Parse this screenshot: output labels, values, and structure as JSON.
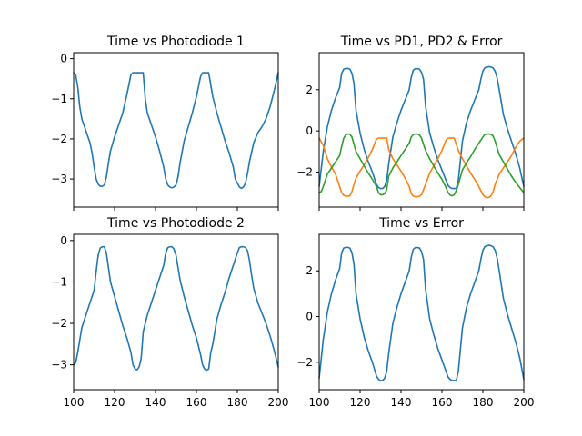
{
  "chart_data": [
    {
      "type": "line",
      "title": "Time vs Photodiode 1",
      "xlim": [
        100,
        200
      ],
      "ylim": [
        -3.7,
        0.15
      ],
      "xticks": [
        100,
        120,
        140,
        160,
        180,
        200
      ],
      "yticks": [
        0,
        -1,
        -2,
        -3
      ],
      "yticklabels": [
        "0",
        "−1",
        "−2",
        "−3"
      ],
      "show_xticklabels": false,
      "series": [
        {
          "color": "#1f77b4",
          "x": [
            100,
            101,
            102,
            103,
            104,
            106,
            108,
            109,
            110,
            111,
            112,
            113,
            114,
            115,
            116,
            117,
            118,
            120,
            122,
            124,
            126,
            128,
            129,
            130,
            132,
            134,
            135,
            136,
            138,
            140,
            142,
            144,
            145,
            146,
            147,
            148,
            149,
            150,
            151,
            152,
            154,
            156,
            158,
            160,
            162,
            163,
            164,
            166,
            167,
            168,
            170,
            172,
            174,
            176,
            178,
            179,
            180,
            181,
            182,
            183,
            184,
            185,
            186,
            188,
            190,
            192,
            194,
            196,
            198,
            200
          ],
          "y": [
            -0.35,
            -0.4,
            -0.7,
            -1.2,
            -1.5,
            -1.8,
            -2.1,
            -2.35,
            -2.7,
            -3.0,
            -3.13,
            -3.18,
            -3.18,
            -3.15,
            -2.95,
            -2.6,
            -2.3,
            -1.95,
            -1.65,
            -1.35,
            -0.9,
            -0.4,
            -0.35,
            -0.35,
            -0.35,
            -0.35,
            -1.0,
            -1.35,
            -1.65,
            -1.95,
            -2.3,
            -2.7,
            -3.0,
            -3.15,
            -3.2,
            -3.22,
            -3.2,
            -3.15,
            -2.95,
            -2.6,
            -2.05,
            -1.7,
            -1.35,
            -0.95,
            -0.45,
            -0.35,
            -0.35,
            -0.35,
            -0.65,
            -0.95,
            -1.35,
            -1.7,
            -2.05,
            -2.35,
            -2.7,
            -3.0,
            -3.1,
            -3.2,
            -3.23,
            -3.2,
            -3.1,
            -2.85,
            -2.55,
            -2.1,
            -1.85,
            -1.7,
            -1.5,
            -1.2,
            -0.8,
            -0.35
          ]
        }
      ]
    },
    {
      "type": "line",
      "title": "Time vs PD1, PD2 & Error",
      "xlim": [
        100,
        200
      ],
      "ylim": [
        -3.7,
        3.8
      ],
      "xticks": [
        100,
        120,
        140,
        160,
        180,
        200
      ],
      "yticks": [
        2,
        0,
        -2
      ],
      "yticklabels": [
        "2",
        "0",
        "−2"
      ],
      "show_xticklabels": false,
      "series": [
        {
          "color": "#1f77b4",
          "x": [
            100,
            102,
            104,
            106,
            108,
            110,
            111,
            112,
            113,
            114,
            115,
            116,
            117,
            118,
            120,
            122,
            124,
            126,
            128,
            129,
            130,
            131,
            132,
            133,
            134,
            136,
            138,
            140,
            142,
            144,
            145,
            146,
            147,
            148,
            149,
            150,
            151,
            152,
            154,
            156,
            158,
            160,
            162,
            163,
            164,
            165,
            166,
            167,
            168,
            170,
            172,
            174,
            176,
            178,
            179,
            180,
            181,
            182,
            183,
            184,
            185,
            186,
            187,
            188,
            190,
            192,
            194,
            196,
            198,
            200
          ],
          "y": [
            -2.7,
            -1.0,
            0.2,
            1.0,
            1.6,
            2.1,
            2.8,
            3.0,
            3.03,
            3.03,
            3.0,
            2.8,
            2.3,
            1.0,
            -0.1,
            -0.9,
            -1.5,
            -2.0,
            -2.6,
            -2.75,
            -2.8,
            -2.8,
            -2.7,
            -2.4,
            -1.6,
            -0.3,
            0.4,
            1.0,
            1.5,
            2.0,
            2.6,
            2.95,
            3.02,
            3.02,
            3.0,
            2.85,
            2.5,
            1.2,
            -0.1,
            -0.8,
            -1.4,
            -1.9,
            -2.4,
            -2.65,
            -2.75,
            -2.8,
            -2.8,
            -2.8,
            -2.4,
            -0.5,
            0.4,
            1.0,
            1.5,
            2.0,
            2.5,
            2.9,
            3.07,
            3.1,
            3.12,
            3.1,
            3.05,
            2.9,
            2.55,
            2.0,
            0.8,
            0.1,
            -0.5,
            -1.1,
            -1.8,
            -2.7
          ]
        },
        {
          "color": "#ff7f0e",
          "x": [
            100,
            102,
            104,
            106,
            108,
            109,
            110,
            111,
            112,
            113,
            114,
            115,
            116,
            117,
            118,
            120,
            122,
            124,
            126,
            128,
            129,
            130,
            131,
            132,
            133,
            134,
            136,
            138,
            140,
            142,
            144,
            145,
            146,
            147,
            148,
            149,
            150,
            152,
            154,
            156,
            158,
            160,
            162,
            163,
            164,
            165,
            166,
            168,
            170,
            172,
            174,
            176,
            178,
            180,
            181,
            182,
            183,
            184,
            185,
            186,
            188,
            190,
            192,
            194,
            196,
            198,
            200
          ],
          "y": [
            -0.35,
            -0.7,
            -1.35,
            -1.75,
            -2.1,
            -2.4,
            -2.7,
            -3.0,
            -3.13,
            -3.17,
            -3.17,
            -3.15,
            -2.95,
            -2.6,
            -2.3,
            -1.95,
            -1.65,
            -1.3,
            -0.9,
            -0.4,
            -0.35,
            -0.35,
            -0.35,
            -0.35,
            -0.35,
            -0.9,
            -1.35,
            -1.65,
            -1.95,
            -2.3,
            -2.7,
            -3.05,
            -3.17,
            -3.2,
            -3.2,
            -3.17,
            -3.1,
            -2.6,
            -2.05,
            -1.7,
            -1.35,
            -0.95,
            -0.45,
            -0.35,
            -0.35,
            -0.35,
            -0.35,
            -0.95,
            -1.35,
            -1.7,
            -2.05,
            -2.35,
            -2.7,
            -3.1,
            -3.2,
            -3.25,
            -3.23,
            -3.15,
            -2.95,
            -2.6,
            -2.1,
            -1.8,
            -1.5,
            -1.2,
            -0.8,
            -0.5,
            -0.35
          ]
        },
        {
          "color": "#2ca02c",
          "x": [
            100,
            101,
            102,
            104,
            106,
            108,
            110,
            111,
            112,
            113,
            114,
            115,
            116,
            117,
            118,
            120,
            122,
            124,
            126,
            128,
            129,
            130,
            131,
            132,
            133,
            134,
            136,
            138,
            140,
            142,
            144,
            145,
            146,
            147,
            148,
            149,
            150,
            152,
            154,
            156,
            158,
            160,
            162,
            163,
            164,
            165,
            166,
            167,
            168,
            170,
            172,
            174,
            176,
            178,
            180,
            181,
            182,
            183,
            184,
            185,
            186,
            187,
            188,
            190,
            192,
            194,
            196,
            198,
            200
          ],
          "y": [
            -3.0,
            -2.95,
            -2.7,
            -2.1,
            -1.8,
            -1.5,
            -1.2,
            -0.75,
            -0.35,
            -0.2,
            -0.15,
            -0.15,
            -0.3,
            -0.65,
            -1.0,
            -1.35,
            -1.7,
            -2.05,
            -2.35,
            -2.7,
            -3.0,
            -3.1,
            -3.1,
            -3.05,
            -2.85,
            -2.2,
            -1.8,
            -1.5,
            -1.2,
            -0.9,
            -0.6,
            -0.3,
            -0.17,
            -0.15,
            -0.15,
            -0.2,
            -0.35,
            -0.95,
            -1.35,
            -1.7,
            -2.05,
            -2.35,
            -2.75,
            -3.0,
            -3.12,
            -3.15,
            -3.1,
            -2.9,
            -2.6,
            -1.9,
            -1.55,
            -1.25,
            -0.9,
            -0.6,
            -0.3,
            -0.17,
            -0.15,
            -0.15,
            -0.17,
            -0.25,
            -0.5,
            -0.85,
            -1.15,
            -1.5,
            -1.85,
            -2.2,
            -2.5,
            -2.75,
            -3.0
          ]
        }
      ]
    },
    {
      "type": "line",
      "title": "Time vs Photodiode 2",
      "xlim": [
        100,
        200
      ],
      "ylim": [
        -3.6,
        0.15
      ],
      "xticks": [
        100,
        120,
        140,
        160,
        180,
        200
      ],
      "xticklabels": [
        "100",
        "120",
        "140",
        "160",
        "180",
        "200"
      ],
      "yticks": [
        0,
        -1,
        -2,
        -3
      ],
      "yticklabels": [
        "0",
        "−1",
        "−2",
        "−3"
      ],
      "show_xticklabels": true,
      "series": [
        {
          "color": "#1f77b4",
          "x": [
            100,
            101,
            102,
            104,
            106,
            108,
            110,
            111,
            112,
            113,
            114,
            115,
            116,
            117,
            118,
            120,
            122,
            124,
            126,
            128,
            129,
            130,
            131,
            132,
            133,
            134,
            136,
            138,
            140,
            142,
            144,
            145,
            146,
            147,
            148,
            149,
            150,
            152,
            154,
            156,
            158,
            160,
            162,
            163,
            164,
            165,
            166,
            167,
            168,
            170,
            172,
            174,
            176,
            178,
            180,
            181,
            182,
            183,
            184,
            185,
            186,
            187,
            188,
            190,
            192,
            194,
            196,
            198,
            200
          ],
          "y": [
            -3.0,
            -2.95,
            -2.7,
            -2.1,
            -1.8,
            -1.5,
            -1.2,
            -0.75,
            -0.35,
            -0.18,
            -0.15,
            -0.15,
            -0.3,
            -0.65,
            -1.0,
            -1.35,
            -1.7,
            -2.05,
            -2.35,
            -2.7,
            -3.0,
            -3.1,
            -3.12,
            -3.05,
            -2.85,
            -2.2,
            -1.8,
            -1.5,
            -1.2,
            -0.9,
            -0.6,
            -0.3,
            -0.17,
            -0.15,
            -0.15,
            -0.2,
            -0.35,
            -0.95,
            -1.35,
            -1.7,
            -2.05,
            -2.35,
            -2.75,
            -3.0,
            -3.1,
            -3.13,
            -3.1,
            -2.7,
            -2.5,
            -1.9,
            -1.55,
            -1.25,
            -0.9,
            -0.6,
            -0.3,
            -0.17,
            -0.15,
            -0.15,
            -0.17,
            -0.25,
            -0.5,
            -0.85,
            -1.15,
            -1.5,
            -1.75,
            -2.0,
            -2.3,
            -2.65,
            -3.05
          ]
        }
      ]
    },
    {
      "type": "line",
      "title": "Time vs Error",
      "xlim": [
        100,
        200
      ],
      "ylim": [
        -3.2,
        3.6
      ],
      "xticks": [
        100,
        120,
        140,
        160,
        180,
        200
      ],
      "xticklabels": [
        "100",
        "120",
        "140",
        "160",
        "180",
        "200"
      ],
      "yticks": [
        2,
        0,
        -2
      ],
      "yticklabels": [
        "2",
        "0",
        "−2"
      ],
      "show_xticklabels": true,
      "series": [
        {
          "color": "#1f77b4",
          "x": [
            100,
            102,
            104,
            106,
            108,
            110,
            111,
            112,
            113,
            114,
            115,
            116,
            117,
            118,
            120,
            122,
            124,
            126,
            128,
            129,
            130,
            131,
            132,
            133,
            134,
            136,
            138,
            140,
            142,
            144,
            145,
            146,
            147,
            148,
            149,
            150,
            151,
            152,
            154,
            156,
            158,
            160,
            162,
            163,
            164,
            165,
            166,
            167,
            168,
            170,
            172,
            174,
            176,
            178,
            179,
            180,
            181,
            182,
            183,
            184,
            185,
            186,
            187,
            188,
            190,
            192,
            194,
            196,
            198,
            200
          ],
          "y": [
            -2.7,
            -1.0,
            0.2,
            1.0,
            1.6,
            2.1,
            2.8,
            3.0,
            3.03,
            3.03,
            3.0,
            2.8,
            2.3,
            1.0,
            -0.1,
            -0.9,
            -1.5,
            -2.0,
            -2.6,
            -2.75,
            -2.8,
            -2.8,
            -2.7,
            -2.4,
            -1.6,
            -0.3,
            0.4,
            1.0,
            1.5,
            2.0,
            2.6,
            2.95,
            3.02,
            3.02,
            3.0,
            2.85,
            2.5,
            1.2,
            -0.1,
            -0.8,
            -1.4,
            -1.9,
            -2.4,
            -2.65,
            -2.75,
            -2.8,
            -2.8,
            -2.8,
            -2.4,
            -0.5,
            0.4,
            1.0,
            1.5,
            2.0,
            2.5,
            2.9,
            3.07,
            3.1,
            3.12,
            3.1,
            3.05,
            2.9,
            2.55,
            2.0,
            0.8,
            0.1,
            -0.5,
            -1.1,
            -1.8,
            -2.75
          ]
        }
      ]
    }
  ]
}
